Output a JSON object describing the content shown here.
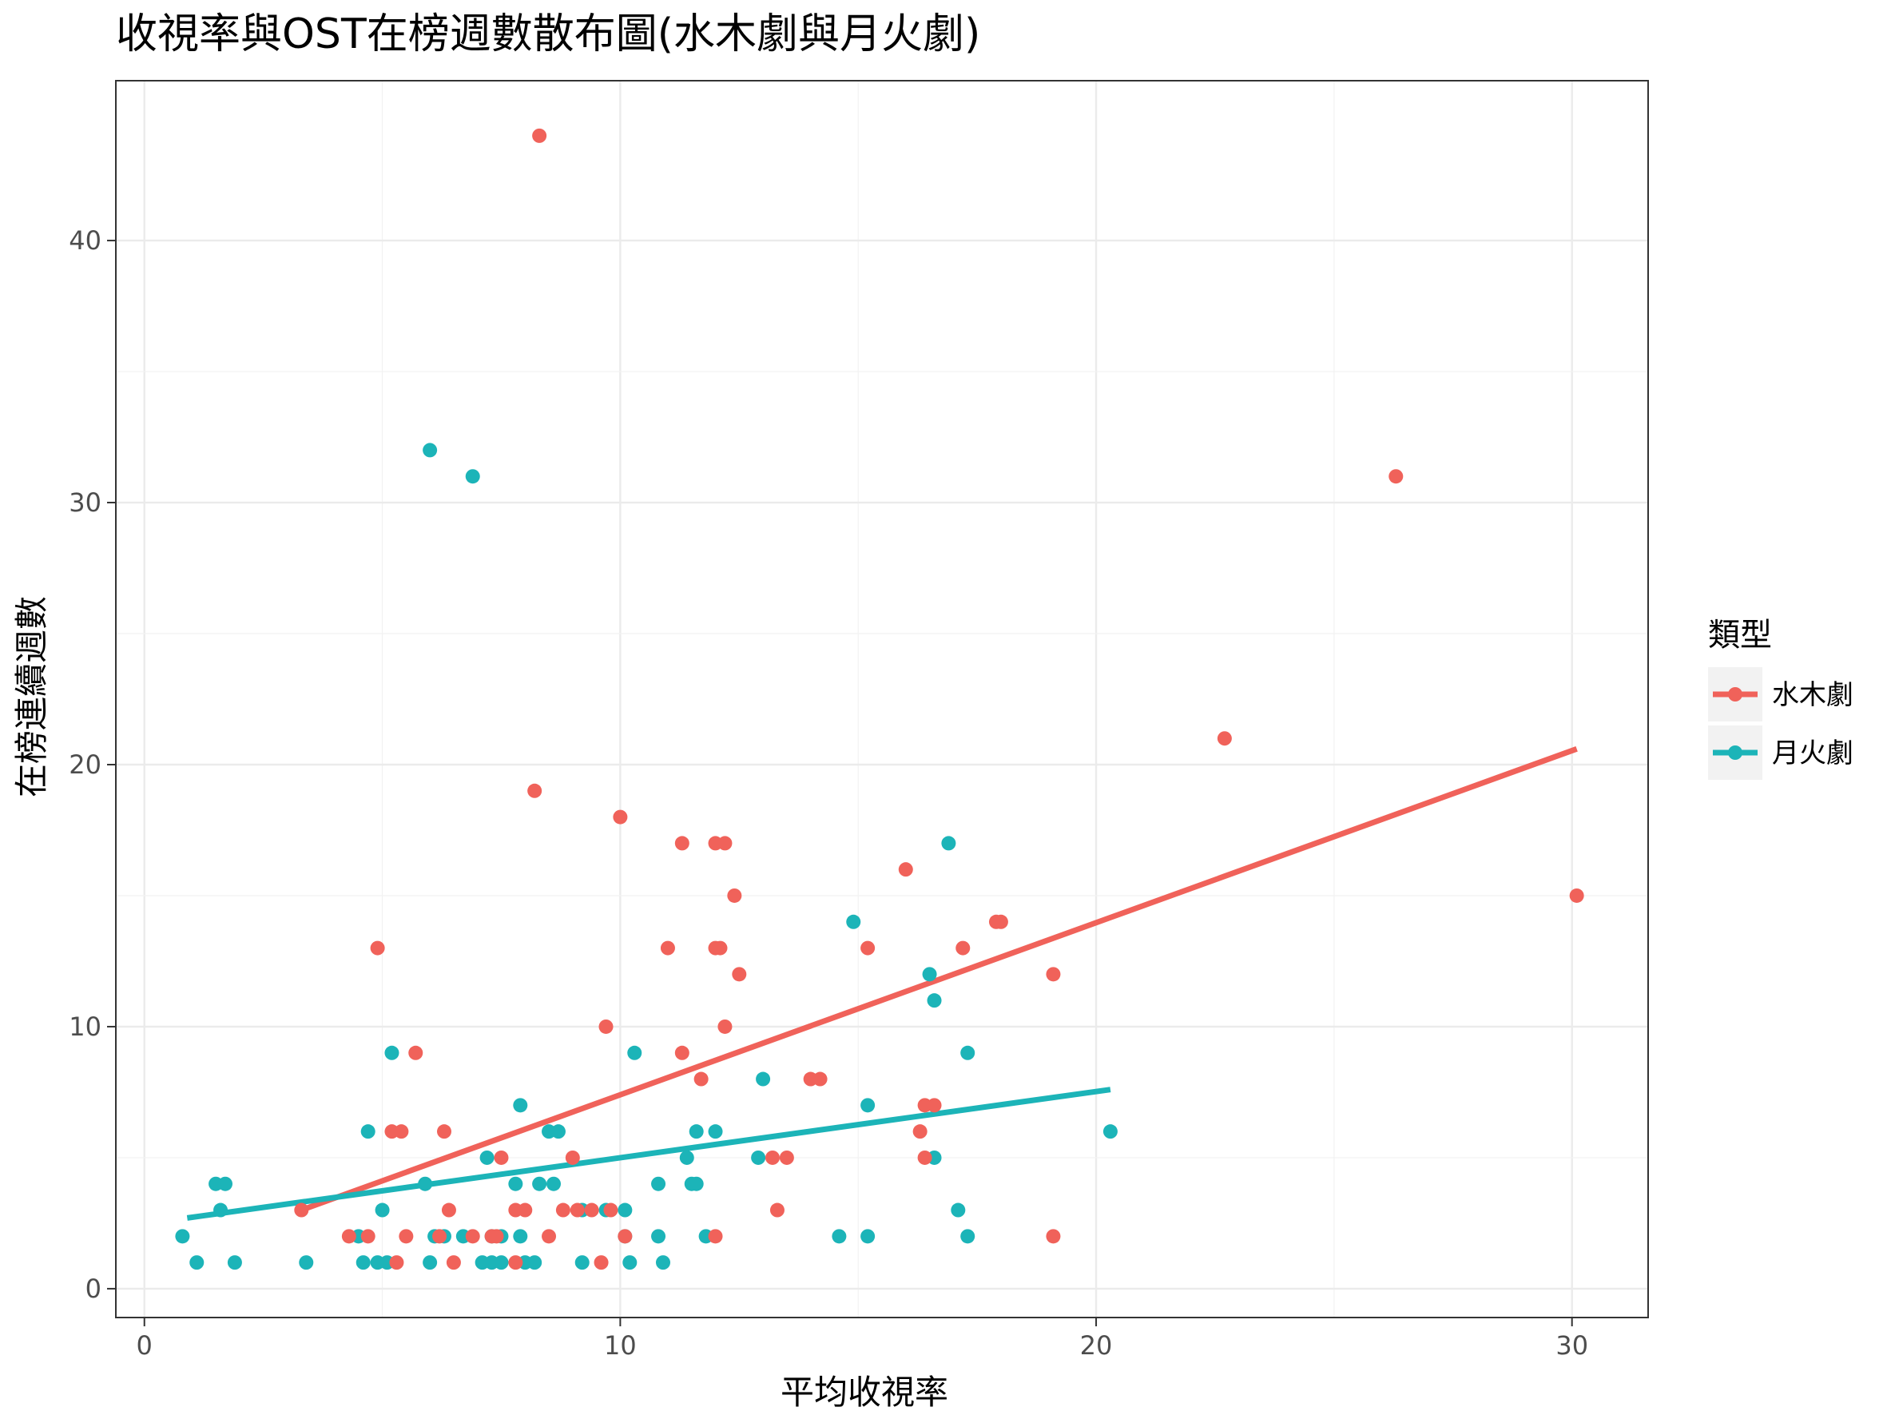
{
  "chart_data": {
    "type": "scatter",
    "title": "收視率與OST在榜週數散布圖(水木劇與月火劇)",
    "xlabel": "平均收視率",
    "ylabel": "在榜連續週數",
    "xlim": [
      -0.6,
      31.6
    ],
    "ylim": [
      -1.1,
      46.1
    ],
    "x_ticks": [
      0,
      10,
      20,
      30
    ],
    "x_tick_labels": [
      "0",
      "10",
      "20",
      "30"
    ],
    "y_ticks": [
      0,
      10,
      20,
      30,
      40
    ],
    "y_tick_labels": [
      "0",
      "10",
      "20",
      "30",
      "40"
    ],
    "grid": true,
    "legend": {
      "title": "類型",
      "position": "right"
    },
    "series": [
      {
        "name": "水木劇",
        "color": "#F0625A",
        "trend": {
          "x": [
            3.3,
            30.1
          ],
          "y": [
            3.0,
            20.6
          ]
        },
        "points": [
          [
            8.3,
            44
          ],
          [
            26.3,
            31
          ],
          [
            22.7,
            21
          ],
          [
            8.2,
            19
          ],
          [
            10.0,
            18
          ],
          [
            11.3,
            17
          ],
          [
            12.0,
            17
          ],
          [
            12.2,
            17
          ],
          [
            16.0,
            16
          ],
          [
            12.4,
            15
          ],
          [
            30.1,
            15
          ],
          [
            17.9,
            14
          ],
          [
            18.0,
            14
          ],
          [
            4.9,
            13
          ],
          [
            11.0,
            13
          ],
          [
            12.0,
            13
          ],
          [
            12.1,
            13
          ],
          [
            15.2,
            13
          ],
          [
            17.2,
            13
          ],
          [
            12.5,
            12
          ],
          [
            19.1,
            12
          ],
          [
            9.7,
            10
          ],
          [
            12.2,
            10
          ],
          [
            5.7,
            9
          ],
          [
            11.3,
            9
          ],
          [
            11.7,
            8
          ],
          [
            14.0,
            8
          ],
          [
            14.2,
            8
          ],
          [
            16.4,
            7
          ],
          [
            16.6,
            7
          ],
          [
            5.2,
            6
          ],
          [
            5.4,
            6
          ],
          [
            6.3,
            6
          ],
          [
            16.3,
            6
          ],
          [
            7.5,
            5
          ],
          [
            9.0,
            5
          ],
          [
            13.2,
            5
          ],
          [
            13.5,
            5
          ],
          [
            16.4,
            5
          ],
          [
            3.3,
            3
          ],
          [
            6.4,
            3
          ],
          [
            7.8,
            3
          ],
          [
            8.0,
            3
          ],
          [
            8.8,
            3
          ],
          [
            9.1,
            3
          ],
          [
            9.4,
            3
          ],
          [
            9.8,
            3
          ],
          [
            13.3,
            3
          ],
          [
            4.3,
            2
          ],
          [
            4.7,
            2
          ],
          [
            5.5,
            2
          ],
          [
            6.2,
            2
          ],
          [
            6.9,
            2
          ],
          [
            7.3,
            2
          ],
          [
            7.4,
            2
          ],
          [
            8.5,
            2
          ],
          [
            10.1,
            2
          ],
          [
            12.0,
            2
          ],
          [
            19.1,
            2
          ],
          [
            5.3,
            1
          ],
          [
            6.5,
            1
          ],
          [
            7.8,
            1
          ],
          [
            9.6,
            1
          ]
        ]
      },
      {
        "name": "月火劇",
        "color": "#1CB4B8",
        "trend": {
          "x": [
            0.9,
            20.3
          ],
          "y": [
            2.7,
            7.6
          ]
        },
        "points": [
          [
            6.0,
            32
          ],
          [
            6.9,
            31
          ],
          [
            16.9,
            17
          ],
          [
            14.9,
            14
          ],
          [
            16.5,
            12
          ],
          [
            16.6,
            11
          ],
          [
            5.2,
            9
          ],
          [
            10.3,
            9
          ],
          [
            17.3,
            9
          ],
          [
            13.0,
            8
          ],
          [
            7.9,
            7
          ],
          [
            15.2,
            7
          ],
          [
            4.7,
            6
          ],
          [
            8.5,
            6
          ],
          [
            8.7,
            6
          ],
          [
            11.6,
            6
          ],
          [
            12.0,
            6
          ],
          [
            20.3,
            6
          ],
          [
            7.2,
            5
          ],
          [
            11.4,
            5
          ],
          [
            12.9,
            5
          ],
          [
            16.6,
            5
          ],
          [
            1.5,
            4
          ],
          [
            1.7,
            4
          ],
          [
            5.9,
            4
          ],
          [
            7.8,
            4
          ],
          [
            8.3,
            4
          ],
          [
            8.6,
            4
          ],
          [
            10.8,
            4
          ],
          [
            11.5,
            4
          ],
          [
            11.6,
            4
          ],
          [
            1.6,
            3
          ],
          [
            5.0,
            3
          ],
          [
            9.2,
            3
          ],
          [
            9.7,
            3
          ],
          [
            10.1,
            3
          ],
          [
            17.1,
            3
          ],
          [
            0.8,
            2
          ],
          [
            4.5,
            2
          ],
          [
            6.1,
            2
          ],
          [
            6.3,
            2
          ],
          [
            6.7,
            2
          ],
          [
            7.3,
            2
          ],
          [
            7.5,
            2
          ],
          [
            7.9,
            2
          ],
          [
            10.1,
            2
          ],
          [
            10.8,
            2
          ],
          [
            11.8,
            2
          ],
          [
            14.6,
            2
          ],
          [
            15.2,
            2
          ],
          [
            17.3,
            2
          ],
          [
            1.1,
            1
          ],
          [
            1.9,
            1
          ],
          [
            3.4,
            1
          ],
          [
            4.6,
            1
          ],
          [
            4.9,
            1
          ],
          [
            5.1,
            1
          ],
          [
            6.0,
            1
          ],
          [
            7.1,
            1
          ],
          [
            7.3,
            1
          ],
          [
            7.5,
            1
          ],
          [
            8.0,
            1
          ],
          [
            8.2,
            1
          ],
          [
            9.2,
            1
          ],
          [
            10.2,
            1
          ],
          [
            10.9,
            1
          ]
        ]
      }
    ]
  }
}
